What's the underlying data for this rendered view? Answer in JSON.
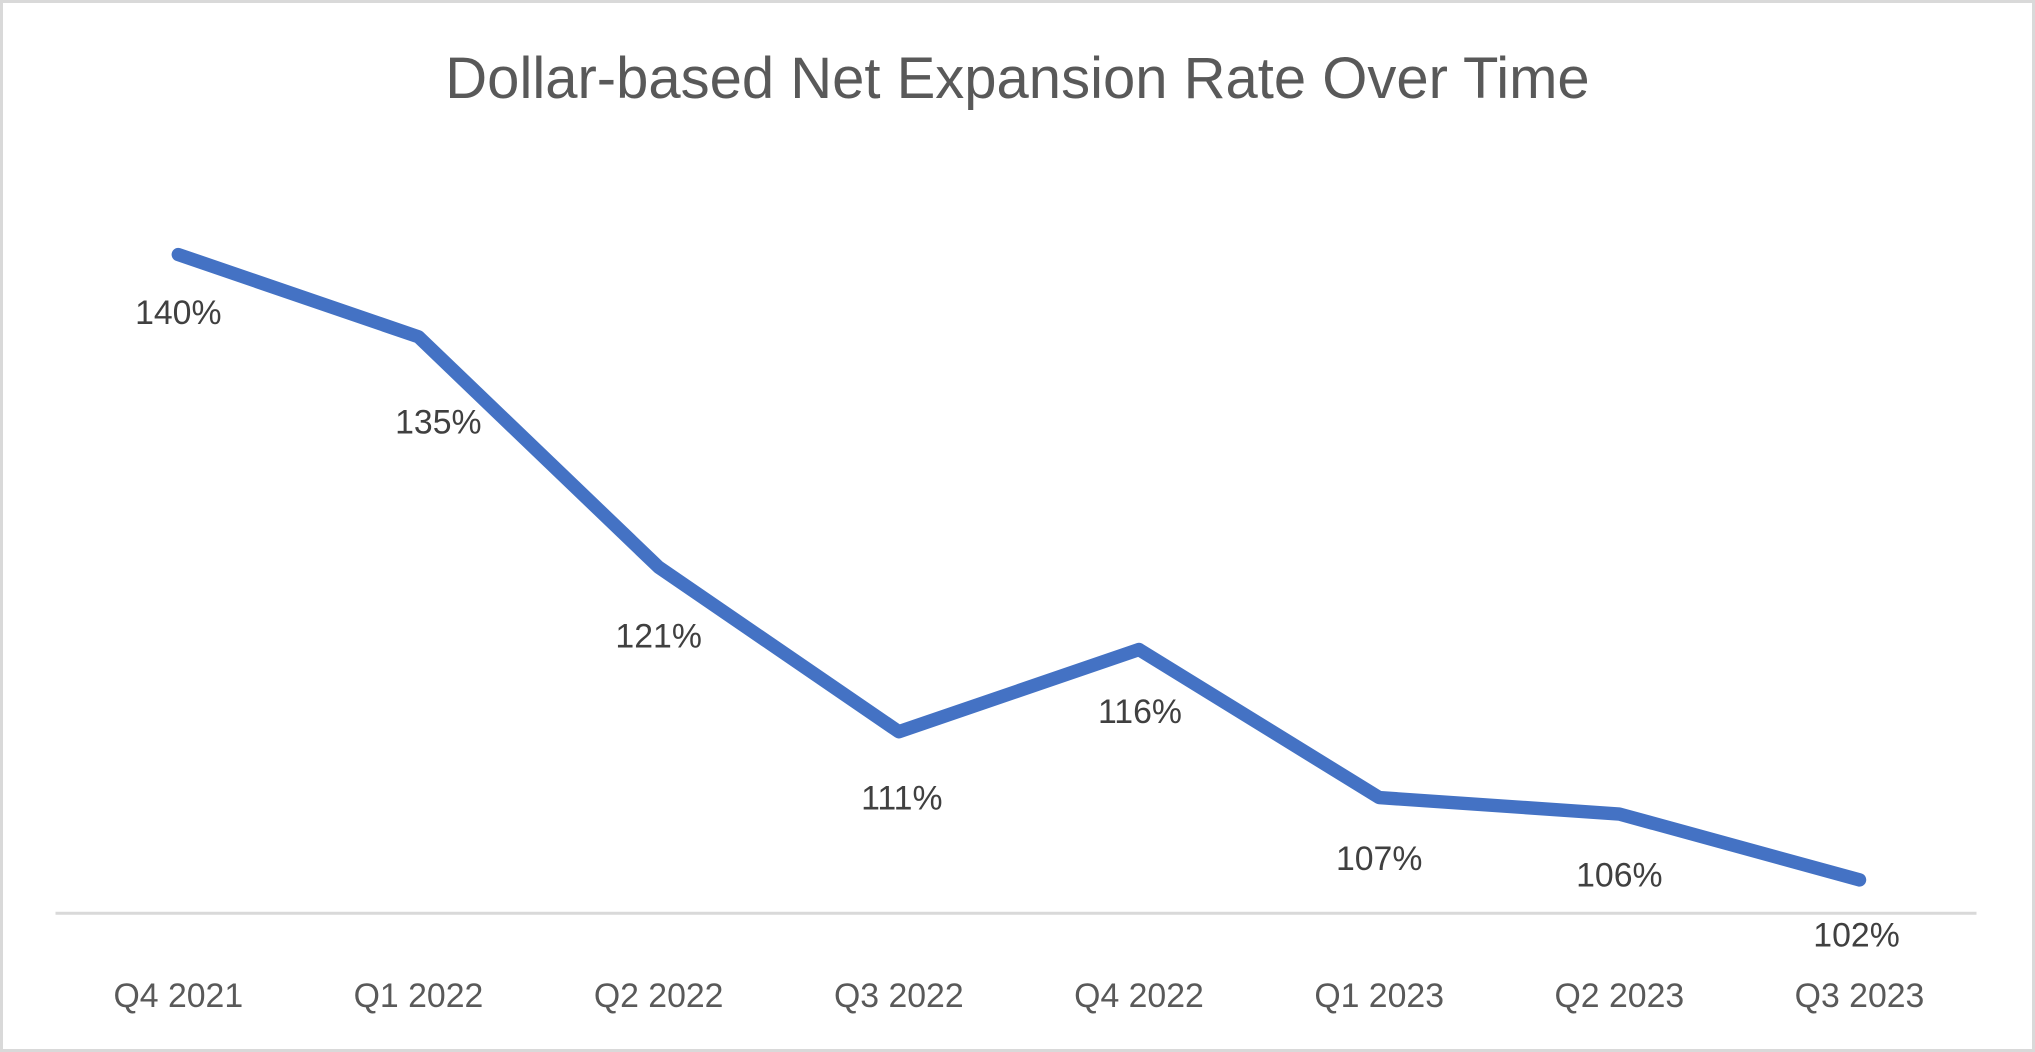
{
  "chart_data": {
    "type": "line",
    "title": "Dollar-based Net Expansion Rate Over Time",
    "categories": [
      "Q4 2021",
      "Q1 2022",
      "Q2 2022",
      "Q3 2022",
      "Q4 2022",
      "Q1 2023",
      "Q2 2023",
      "Q3 2023"
    ],
    "values": [
      140,
      135,
      121,
      111,
      116,
      107,
      106,
      102
    ],
    "data_labels": [
      "140%",
      "135%",
      "121%",
      "111%",
      "116%",
      "107%",
      "106%",
      "102%"
    ],
    "xlabel": "",
    "ylabel": "",
    "ylim": [
      100,
      145
    ],
    "baseline_value": 100,
    "grid": false,
    "legend": false,
    "y_axis_labels_visible": false,
    "line_color": "#4472C4",
    "axis_line_color": "#D9D9D9",
    "data_label_color": "#404040",
    "tick_label_color": "#595959",
    "title_color": "#595959",
    "background_color": "#FFFFFF",
    "border_color": "#D9D9D9"
  }
}
